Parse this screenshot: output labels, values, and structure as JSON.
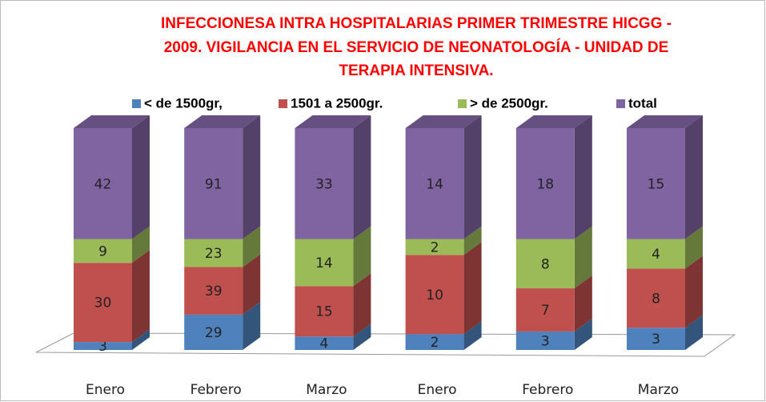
{
  "chart_data": {
    "type": "bar",
    "stacking": "percent",
    "title": [
      "INFECCIONESA INTRA HOSPITALARIAS PRIMER TRIMESTRE HICGG -",
      "2009. VIGILANCIA EN EL SERVICIO DE NEONATOLOGÍA - UNIDAD DE",
      "TERAPIA INTENSIVA."
    ],
    "categories": [
      "Enero",
      "Febrero",
      "Marzo",
      "Enero",
      "Febrero",
      "Marzo"
    ],
    "series": [
      {
        "name": "< de 1500gr,",
        "color": "#4f81bd",
        "values": [
          3,
          29,
          4,
          2,
          3,
          3
        ]
      },
      {
        "name": "1501 a 2500gr.",
        "color": "#c0504d",
        "values": [
          30,
          39,
          15,
          10,
          7,
          8
        ]
      },
      {
        "name": "> de 2500gr.",
        "color": "#9bbb59",
        "values": [
          9,
          23,
          14,
          2,
          8,
          4
        ]
      },
      {
        "name": "total",
        "color": "#8064a2",
        "values": [
          42,
          91,
          33,
          14,
          18,
          15
        ]
      }
    ]
  }
}
